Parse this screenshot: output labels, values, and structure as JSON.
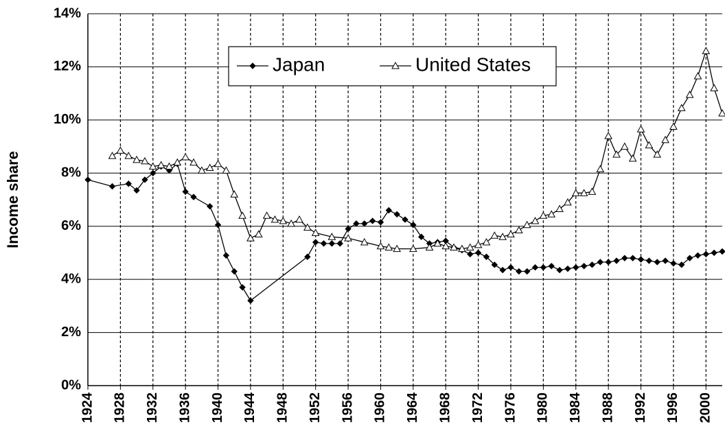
{
  "chart_data": {
    "type": "line",
    "y_label": "Income share",
    "xlim": [
      1924,
      2002
    ],
    "xticks": [
      1924,
      1928,
      1932,
      1936,
      1940,
      1944,
      1948,
      1952,
      1956,
      1960,
      1964,
      1968,
      1972,
      1976,
      1980,
      1984,
      1988,
      1992,
      1996,
      2000
    ],
    "ylim": [
      0,
      14
    ],
    "yticks": [
      {
        "value": 0,
        "label": "0%"
      },
      {
        "value": 2,
        "label": "2%"
      },
      {
        "value": 4,
        "label": "4%"
      },
      {
        "value": 6,
        "label": "6%"
      },
      {
        "value": 8,
        "label": "8%"
      },
      {
        "value": 10,
        "label": "10%"
      },
      {
        "value": 12,
        "label": "12%"
      },
      {
        "value": 14,
        "label": "14%"
      }
    ],
    "grid": true,
    "legend": "top",
    "series": [
      {
        "name": "Japan",
        "color": "#000000",
        "marker": "diamond",
        "x": [
          1924,
          1927,
          1929,
          1930,
          1931,
          1932,
          1933,
          1934,
          1935,
          1936,
          1937,
          1939,
          1940,
          1941,
          1942,
          1943,
          1944,
          1951,
          1952,
          1953,
          1954,
          1955,
          1956,
          1957,
          1958,
          1959,
          1960,
          1961,
          1962,
          1963,
          1964,
          1965,
          1966,
          1967,
          1968,
          1969,
          1970,
          1971,
          1972,
          1973,
          1974,
          1975,
          1976,
          1977,
          1978,
          1979,
          1980,
          1981,
          1982,
          1983,
          1984,
          1985,
          1986,
          1987,
          1988,
          1989,
          1990,
          1991,
          1992,
          1993,
          1994,
          1995,
          1996,
          1997,
          1998,
          1999,
          2000,
          2001,
          2002
        ],
        "values": [
          7.75,
          7.5,
          7.6,
          7.35,
          7.75,
          8.0,
          8.25,
          8.1,
          8.35,
          7.3,
          7.1,
          6.75,
          6.05,
          4.9,
          4.3,
          3.7,
          3.2,
          4.85,
          5.4,
          5.35,
          5.35,
          5.35,
          5.9,
          6.1,
          6.1,
          6.2,
          6.15,
          6.6,
          6.45,
          6.25,
          6.05,
          5.6,
          5.35,
          5.4,
          5.45,
          5.2,
          5.1,
          4.95,
          5.0,
          4.85,
          4.55,
          4.35,
          4.45,
          4.3,
          4.3,
          4.45,
          4.45,
          4.5,
          4.35,
          4.4,
          4.45,
          4.5,
          4.55,
          4.65,
          4.65,
          4.7,
          4.8,
          4.8,
          4.75,
          4.7,
          4.65,
          4.7,
          4.6,
          4.55,
          4.8,
          4.9,
          4.95,
          5.0,
          5.05
        ]
      },
      {
        "name": "United States",
        "color": "#000000",
        "marker": "triangle",
        "x": [
          1927,
          1928,
          1929,
          1930,
          1931,
          1932,
          1933,
          1934,
          1935,
          1936,
          1937,
          1938,
          1939,
          1940,
          1941,
          1942,
          1943,
          1944,
          1945,
          1946,
          1947,
          1948,
          1949,
          1950,
          1951,
          1952,
          1954,
          1956,
          1958,
          1960,
          1961,
          1962,
          1964,
          1966,
          1967,
          1968,
          1969,
          1970,
          1971,
          1972,
          1973,
          1974,
          1975,
          1976,
          1977,
          1978,
          1979,
          1980,
          1981,
          1982,
          1983,
          1984,
          1985,
          1986,
          1987,
          1988,
          1989,
          1990,
          1991,
          1992,
          1993,
          1994,
          1995,
          1996,
          1997,
          1998,
          1999,
          2000,
          2001,
          2002
        ],
        "values": [
          8.65,
          8.85,
          8.65,
          8.5,
          8.45,
          8.25,
          8.3,
          8.25,
          8.4,
          8.6,
          8.4,
          8.1,
          8.2,
          8.35,
          8.1,
          7.2,
          6.4,
          5.55,
          5.7,
          6.4,
          6.25,
          6.2,
          6.1,
          6.25,
          5.95,
          5.75,
          5.6,
          5.55,
          5.4,
          5.25,
          5.2,
          5.15,
          5.15,
          5.2,
          5.35,
          5.25,
          5.2,
          5.15,
          5.2,
          5.3,
          5.4,
          5.65,
          5.6,
          5.7,
          5.85,
          6.05,
          6.2,
          6.4,
          6.45,
          6.65,
          6.9,
          7.25,
          7.25,
          7.3,
          8.15,
          9.4,
          8.7,
          9.0,
          8.55,
          9.65,
          9.05,
          8.7,
          9.25,
          9.75,
          10.45,
          10.95,
          11.65,
          12.6,
          11.2,
          10.25
        ]
      }
    ]
  }
}
